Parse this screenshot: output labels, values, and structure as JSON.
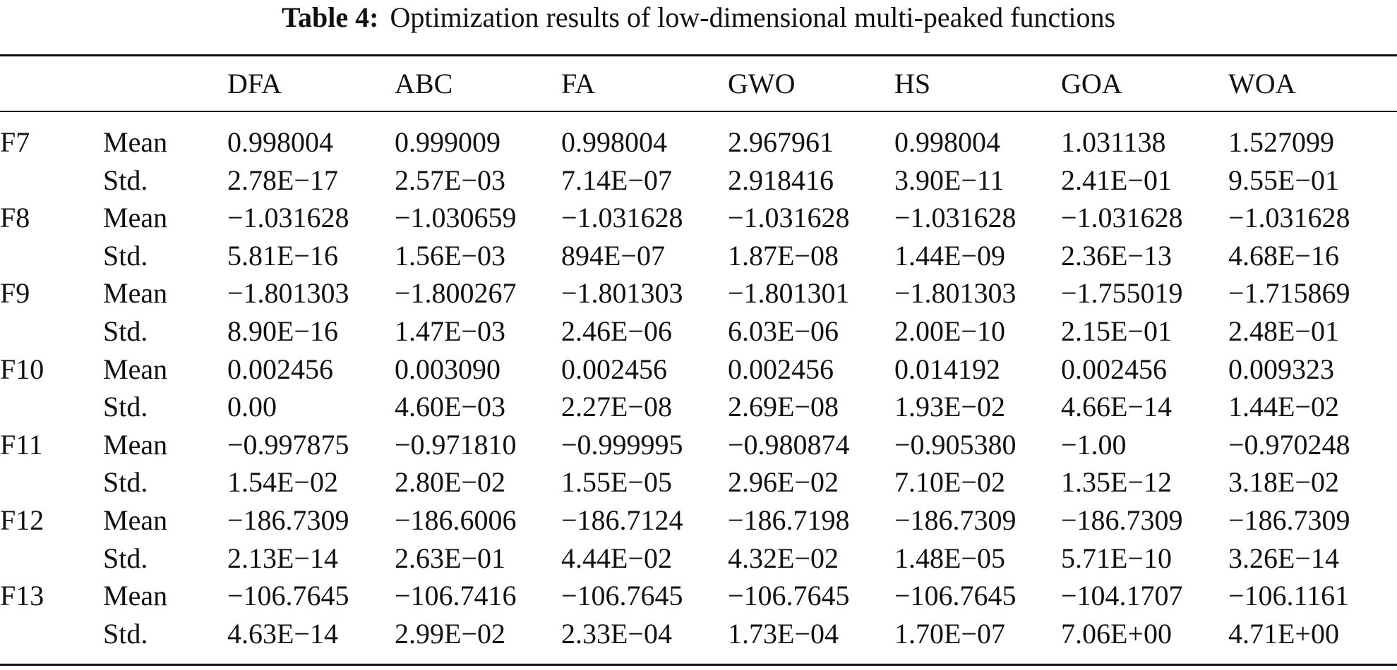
{
  "caption": {
    "label": "Table 4:",
    "text": "Optimization results of low-dimensional multi-peaked functions"
  },
  "columns": [
    "DFA",
    "ABC",
    "FA",
    "GWO",
    "HS",
    "GOA",
    "WOA"
  ],
  "rows": [
    {
      "function": "F7",
      "stat": "Mean",
      "values": [
        "0.998004",
        "0.999009",
        "0.998004",
        "2.967961",
        "0.998004",
        "1.031138",
        "1.527099"
      ]
    },
    {
      "function": "",
      "stat": "Std.",
      "values": [
        "2.78E−17",
        "2.57E−03",
        "7.14E−07",
        "2.918416",
        "3.90E−11",
        "2.41E−01",
        "9.55E−01"
      ]
    },
    {
      "function": "F8",
      "stat": "Mean",
      "values": [
        "−1.031628",
        "−1.030659",
        "−1.031628",
        "−1.031628",
        "−1.031628",
        "−1.031628",
        "−1.031628"
      ]
    },
    {
      "function": "",
      "stat": "Std.",
      "values": [
        "5.81E−16",
        "1.56E−03",
        "894E−07",
        "1.87E−08",
        "1.44E−09",
        "2.36E−13",
        "4.68E−16"
      ]
    },
    {
      "function": "F9",
      "stat": "Mean",
      "values": [
        "−1.801303",
        "−1.800267",
        "−1.801303",
        "−1.801301",
        "−1.801303",
        "−1.755019",
        "−1.715869"
      ]
    },
    {
      "function": "",
      "stat": "Std.",
      "values": [
        "8.90E−16",
        "1.47E−03",
        "2.46E−06",
        "6.03E−06",
        "2.00E−10",
        "2.15E−01",
        "2.48E−01"
      ]
    },
    {
      "function": "F10",
      "stat": "Mean",
      "values": [
        "0.002456",
        "0.003090",
        "0.002456",
        "0.002456",
        "0.014192",
        "0.002456",
        "0.009323"
      ]
    },
    {
      "function": "",
      "stat": "Std.",
      "values": [
        "0.00",
        "4.60E−03",
        "2.27E−08",
        "2.69E−08",
        "1.93E−02",
        "4.66E−14",
        "1.44E−02"
      ]
    },
    {
      "function": "F11",
      "stat": "Mean",
      "values": [
        "−0.997875",
        "−0.971810",
        "−0.999995",
        "−0.980874",
        "−0.905380",
        "−1.00",
        "−0.970248"
      ]
    },
    {
      "function": "",
      "stat": "Std.",
      "values": [
        "1.54E−02",
        "2.80E−02",
        "1.55E−05",
        "2.96E−02",
        "7.10E−02",
        "1.35E−12",
        "3.18E−02"
      ]
    },
    {
      "function": "F12",
      "stat": "Mean",
      "values": [
        "−186.7309",
        "−186.6006",
        "−186.7124",
        "−186.7198",
        "−186.7309",
        "−186.7309",
        "−186.7309"
      ]
    },
    {
      "function": "",
      "stat": "Std.",
      "values": [
        "2.13E−14",
        "2.63E−01",
        "4.44E−02",
        "4.32E−02",
        "1.48E−05",
        "5.71E−10",
        "3.26E−14"
      ]
    },
    {
      "function": "F13",
      "stat": "Mean",
      "values": [
        "−106.7645",
        "−106.7416",
        "−106.7645",
        "−106.7645",
        "−106.7645",
        "−104.1707",
        "−106.1161"
      ]
    },
    {
      "function": "",
      "stat": "Std.",
      "values": [
        "4.63E−14",
        "2.99E−02",
        "2.33E−04",
        "1.73E−04",
        "1.70E−07",
        "7.06E+00",
        "4.71E+00"
      ]
    }
  ]
}
